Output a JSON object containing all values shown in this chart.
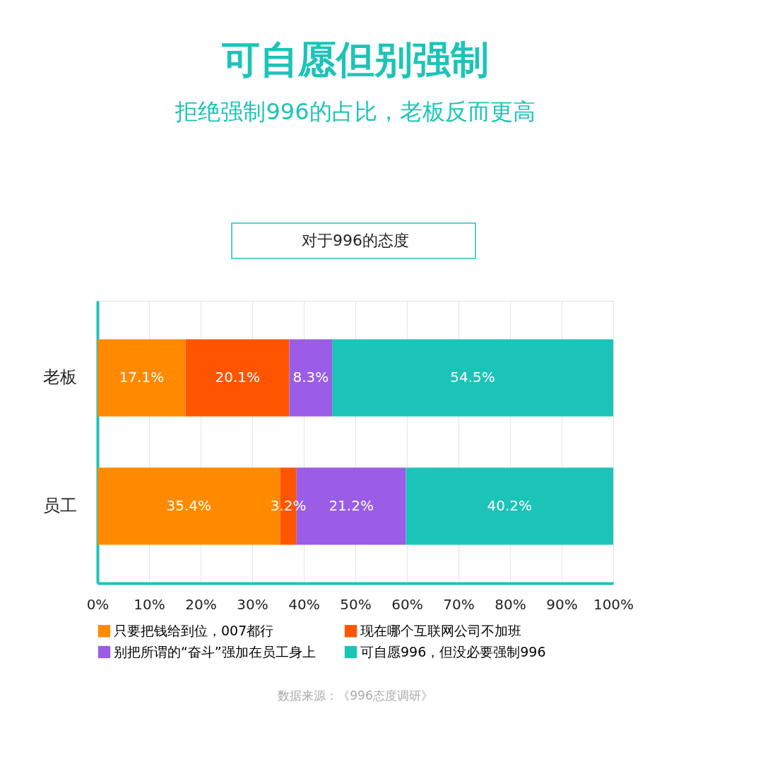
{
  "chart_data": {
    "type": "bar",
    "orientation": "horizontal",
    "stacked": true,
    "title": "可自愿但别强制",
    "subtitle": "拒绝强制996的占比，老板反而更高",
    "annotations": [
      "对于996的态度",
      "数据来源：《996态度调研》"
    ],
    "categories": [
      "老板",
      "员工"
    ],
    "series": [
      {
        "name": "只要把钱给到位，007都行",
        "color": "#ff8a00",
        "values": [
          17.1,
          35.4
        ],
        "value_labels": [
          "17.1%",
          "35.4%"
        ]
      },
      {
        "name": "现在哪个互联网公司不加班",
        "color": "#ff5500",
        "values": [
          20.1,
          3.2
        ],
        "value_labels": [
          "20.1%",
          "3.2%"
        ]
      },
      {
        "name": "别把所谓的“奋斗”强加在员工身上",
        "color": "#9b5de5",
        "values": [
          8.3,
          21.2
        ],
        "value_labels": [
          "8.3%",
          "21.2%"
        ]
      },
      {
        "name": "可自愿996，但没必要强制996",
        "color": "#1cc4b8",
        "values": [
          54.5,
          40.2
        ],
        "value_labels": [
          "54.5%",
          "40.2%"
        ]
      }
    ],
    "xlim": [
      0,
      100
    ],
    "xticks": [
      {
        "value": 0,
        "label": "0%"
      },
      {
        "value": 10,
        "label": "10%"
      },
      {
        "value": 20,
        "label": "20%"
      },
      {
        "value": 30,
        "label": "30%"
      },
      {
        "value": 40,
        "label": "40%"
      },
      {
        "value": 50,
        "label": "50%"
      },
      {
        "value": 60,
        "label": "60%"
      },
      {
        "value": 70,
        "label": "70%"
      },
      {
        "value": 80,
        "label": "80%"
      },
      {
        "value": 90,
        "label": "90%"
      },
      {
        "value": 100,
        "label": "100%"
      }
    ],
    "grid": "x",
    "legend": "bottom"
  }
}
